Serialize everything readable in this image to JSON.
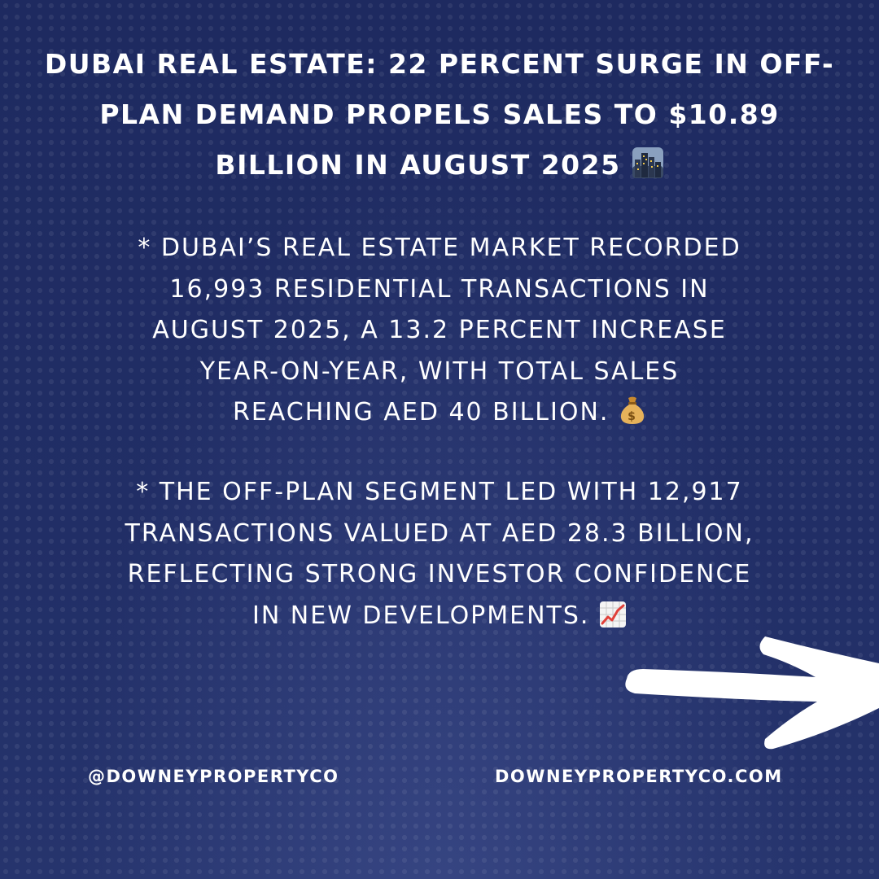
{
  "headline": {
    "lines": [
      "DUBAI REAL ESTATE: 22 PERCENT SURGE IN OFF-",
      "PLAN DEMAND PROPELS SALES TO $10.89",
      "BILLION IN AUGUST 2025"
    ],
    "emoji": "city-skyline-icon"
  },
  "bullets": [
    {
      "lines": [
        "* DUBAI’S REAL ESTATE MARKET RECORDED",
        "16,993 RESIDENTIAL TRANSACTIONS IN",
        "AUGUST 2025, A 13.2 PERCENT INCREASE",
        "YEAR-ON-YEAR, WITH TOTAL SALES",
        "REACHING AED 40 BILLION."
      ],
      "emoji": "money-bag-icon"
    },
    {
      "lines": [
        "* THE OFF-PLAN SEGMENT LED WITH 12,917",
        "TRANSACTIONS VALUED AT AED 28.3 BILLION,",
        "REFLECTING STRONG INVESTOR CONFIDENCE",
        "IN NEW DEVELOPMENTS."
      ],
      "emoji": "chart-increasing-icon"
    }
  ],
  "footer": {
    "social_handle": "@DOWNEYPROPERTYCO",
    "website": "DOWNEYPROPERTYCO.COM"
  },
  "colors": {
    "background": "#1f2b62",
    "text": "#ffffff"
  }
}
